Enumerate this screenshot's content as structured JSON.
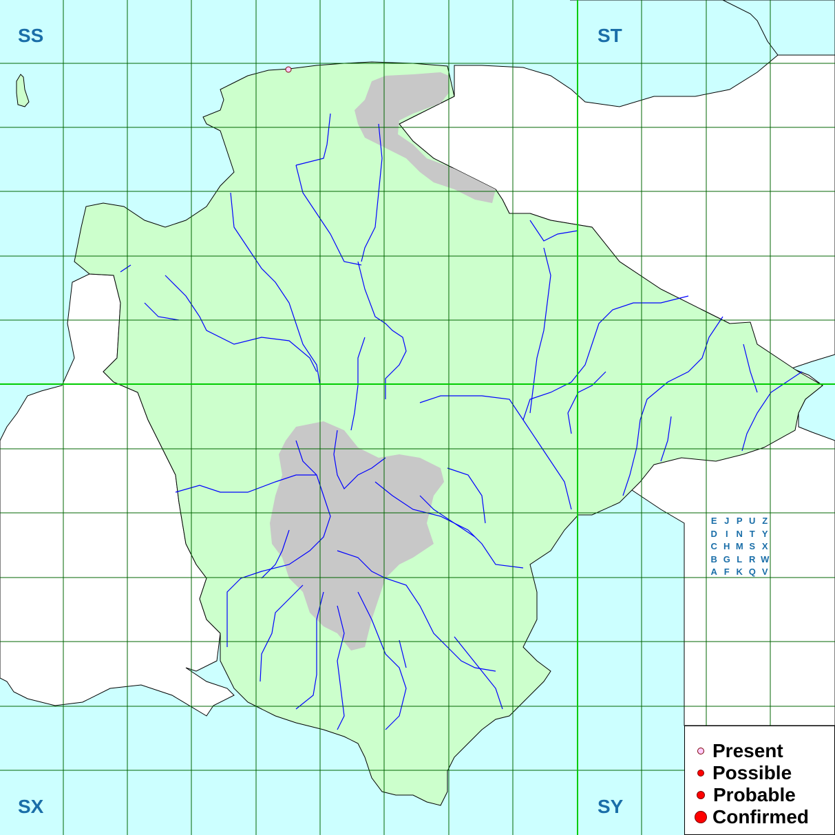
{
  "squares": {
    "nw": "SS",
    "ne": "ST",
    "sw": "SX",
    "se": "SY"
  },
  "tetrad_key": [
    [
      "E",
      "J",
      "P",
      "U",
      "Z"
    ],
    [
      "D",
      "I",
      "N",
      "T",
      "Y"
    ],
    [
      "C",
      "H",
      "M",
      "S",
      "X"
    ],
    [
      "B",
      "G",
      "L",
      "R",
      "W"
    ],
    [
      "A",
      "F",
      "K",
      "Q",
      "V"
    ]
  ],
  "legend": {
    "present": "Present",
    "possible": "Possible",
    "probable": "Probable",
    "confirmed": "Confirmed"
  },
  "colors": {
    "sea": "#ccffff",
    "land": "#ccffcc",
    "upland": "#c8c8c8",
    "river": "#0000ff",
    "grid": "#006400",
    "major_grid": "#00cc00",
    "outside": "#ffffff",
    "label": "#1a6ea8",
    "present_dot": "#ffccff",
    "record_dot": "#ff0000"
  },
  "records": [
    {
      "status": "present",
      "square": "SS",
      "tetrad": "E"
    }
  ]
}
